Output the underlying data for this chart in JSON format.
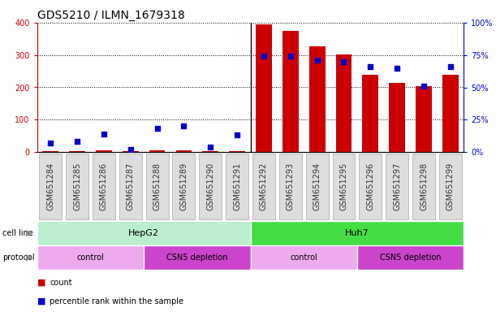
{
  "title": "GDS5210 / ILMN_1679318",
  "samples": [
    "GSM651284",
    "GSM651285",
    "GSM651286",
    "GSM651287",
    "GSM651288",
    "GSM651289",
    "GSM651290",
    "GSM651291",
    "GSM651292",
    "GSM651293",
    "GSM651294",
    "GSM651295",
    "GSM651296",
    "GSM651297",
    "GSM651298",
    "GSM651299"
  ],
  "counts": [
    2,
    3,
    4,
    3,
    5,
    5,
    3,
    3,
    395,
    375,
    328,
    302,
    240,
    215,
    203,
    240
  ],
  "percentile_ranks": [
    7,
    8,
    14,
    2,
    18,
    20,
    4,
    13,
    74,
    74,
    71,
    70,
    66,
    65,
    51,
    66
  ],
  "bar_color": "#cc0000",
  "dot_color": "#0000cc",
  "ylim_left": [
    0,
    400
  ],
  "ylim_right": [
    0,
    100
  ],
  "yticks_left": [
    0,
    100,
    200,
    300,
    400
  ],
  "yticks_right": [
    0,
    25,
    50,
    75,
    100
  ],
  "ytick_labels_right": [
    "0%",
    "25%",
    "50%",
    "75%",
    "100%"
  ],
  "hepg2_light": "#bbeecc",
  "huh7_dark": "#44dd44",
  "control_light": "#eeaaee",
  "csn5_dark": "#cc44cc",
  "background_color": "#ffffff",
  "title_fontsize": 10,
  "tick_fontsize": 7,
  "label_fontsize": 8,
  "annotation_fontsize": 8,
  "legend_fontsize": 7
}
